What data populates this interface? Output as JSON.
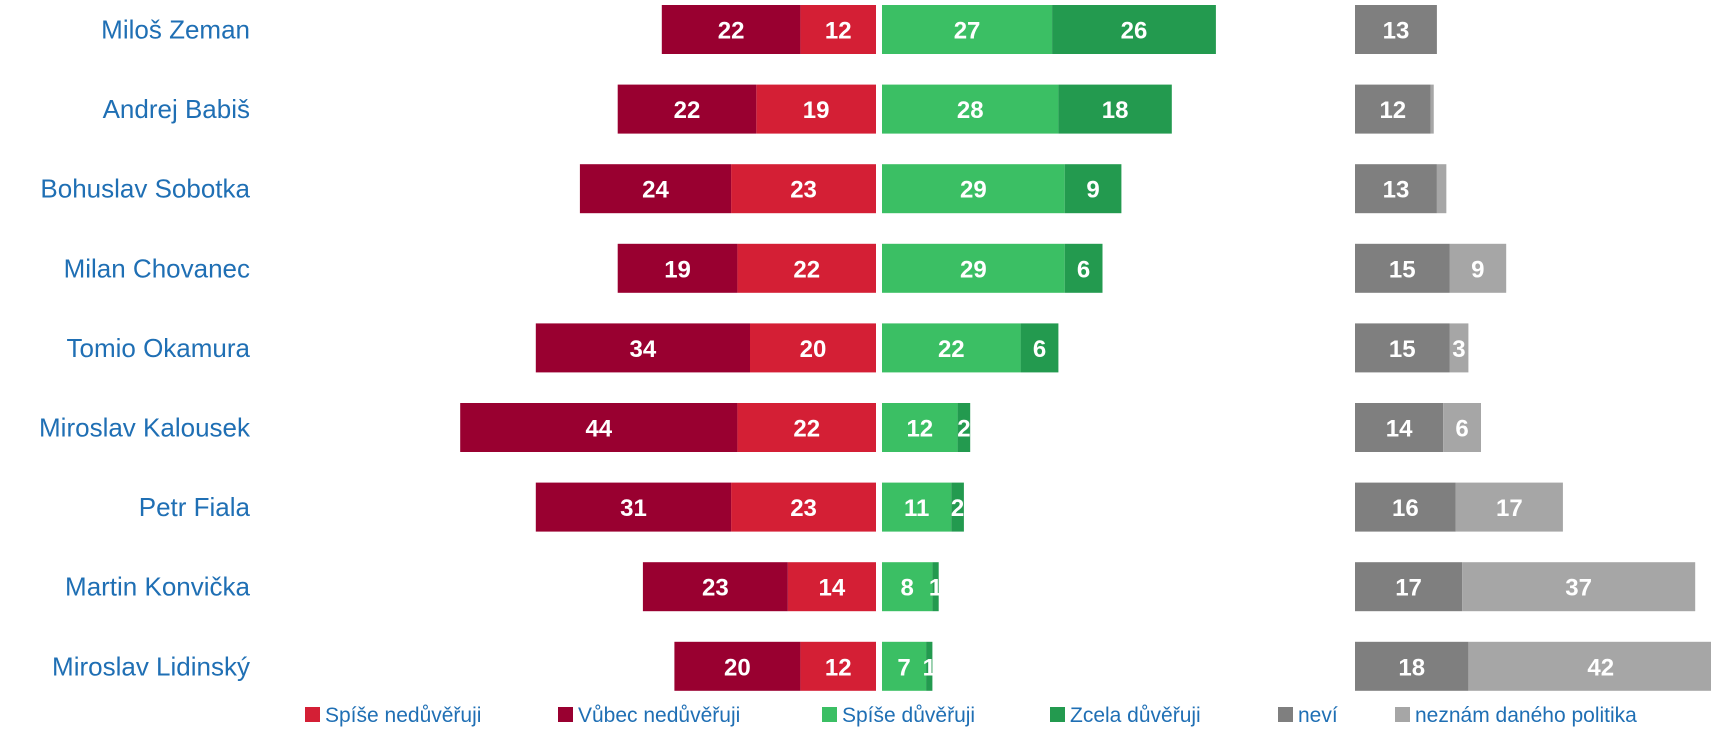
{
  "chart_data": {
    "type": "bar",
    "title": "",
    "categories": [
      "Miloš Zeman",
      "Andrej Babiš",
      "Bohuslav Sobotka",
      "Milan Chovanec",
      "Tomio Okamura",
      "Miroslav Kalousek",
      "Petr Fiala",
      "Martin Konvička",
      "Miroslav Lidinský"
    ],
    "series": [
      {
        "name": "Spíše nedůvěřuji",
        "key": "spise_nedu",
        "color": "#d41f35",
        "group": "distrust",
        "values": [
          12,
          19,
          23,
          22,
          20,
          22,
          23,
          14,
          12
        ]
      },
      {
        "name": "Vůbec nedůvěřuji",
        "key": "vubec_nedu",
        "color": "#990030",
        "group": "distrust",
        "values": [
          22,
          22,
          24,
          19,
          34,
          44,
          31,
          23,
          20
        ]
      },
      {
        "name": "Spíše důvěřuji",
        "key": "spise_du",
        "color": "#3bbf64",
        "group": "trust",
        "values": [
          27,
          28,
          29,
          29,
          22,
          12,
          11,
          8,
          7
        ]
      },
      {
        "name": "Zcela důvěřuji",
        "key": "zcela_du",
        "color": "#239a4f",
        "group": "trust",
        "values": [
          26,
          18,
          9,
          6,
          6,
          2,
          2,
          1,
          1
        ]
      },
      {
        "name": "neví",
        "key": "nevi",
        "color": "#7f7f7f",
        "group": "other",
        "values": [
          13,
          12,
          13,
          15,
          15,
          14,
          16,
          17,
          18
        ]
      },
      {
        "name": "neznám daného politika",
        "key": "neznam",
        "color": "#a6a6a6",
        "group": "other",
        "values": [
          0,
          0.5,
          1.5,
          9,
          3,
          6,
          17,
          37,
          42
        ]
      }
    ],
    "value_labels": {
      "neznam": [
        "",
        "",
        "",
        "9",
        "3",
        "6",
        "17",
        "37",
        "42"
      ]
    },
    "legend_position": "bottom",
    "grid": false
  },
  "colors": {
    "name_label": "#1f6fb4",
    "legend_text": "#1f6fb4",
    "bar_text": "#ffffff"
  }
}
